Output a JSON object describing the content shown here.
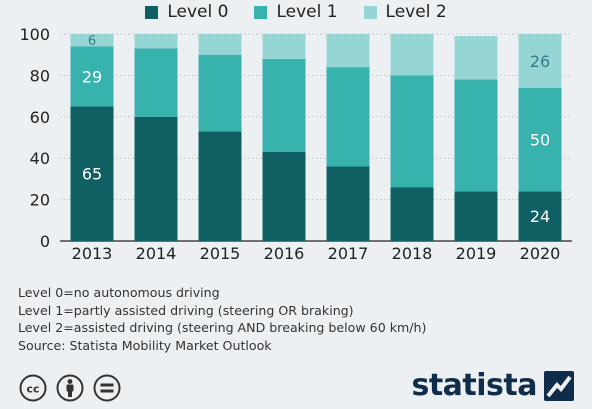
{
  "chart_data": {
    "type": "bar",
    "stacked": true,
    "categories": [
      "2013",
      "2014",
      "2015",
      "2016",
      "2017",
      "2018",
      "2019",
      "2020"
    ],
    "series": [
      {
        "name": "Level 0",
        "color": "#0f5f63",
        "values": [
          65,
          60,
          53,
          43,
          36,
          26,
          24,
          24
        ]
      },
      {
        "name": "Level 1",
        "color": "#38b2ac",
        "values": [
          29,
          33,
          37,
          45,
          48,
          54,
          54,
          50
        ]
      },
      {
        "name": "Level 2",
        "color": "#95d5d3",
        "values": [
          6,
          7,
          10,
          12,
          16,
          20,
          21,
          26
        ]
      }
    ],
    "data_labels": [
      {
        "category": "2013",
        "series": "Level 0",
        "text": "65"
      },
      {
        "category": "2013",
        "series": "Level 1",
        "text": "29"
      },
      {
        "category": "2013",
        "series": "Level 2",
        "text": "6"
      },
      {
        "category": "2020",
        "series": "Level 0",
        "text": "24"
      },
      {
        "category": "2020",
        "series": "Level 1",
        "text": "50"
      },
      {
        "category": "2020",
        "series": "Level 2",
        "text": "26"
      }
    ],
    "y_ticks": [
      0,
      20,
      40,
      60,
      80,
      100
    ],
    "ylim": [
      0,
      100
    ],
    "grid": true,
    "legend_position": "top-center"
  },
  "notes": [
    "Level 0=no autonomous driving",
    "Level 1=partly assisted driving (steering OR braking)",
    "Level 2=assisted driving (steering AND breaking below 60 km/h)"
  ],
  "source": "Source: Statista Mobility Market Outlook",
  "brand": {
    "name": "statista"
  },
  "license_icons": [
    "cc-icon",
    "attribution-icon",
    "no-derivatives-icon"
  ]
}
